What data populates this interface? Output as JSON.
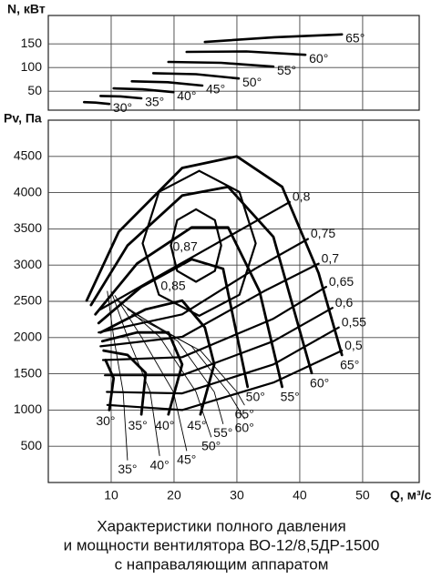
{
  "chart_data": [
    {
      "type": "line",
      "title": "N, кВт",
      "xlim": [
        0,
        59
      ],
      "xticks": [
        10,
        20,
        30,
        40,
        50
      ],
      "ylim": [
        10,
        210
      ],
      "yticks": [
        50,
        100,
        150
      ],
      "grid": true,
      "color": "#000000",
      "series": [
        {
          "name": "30°",
          "x": [
            5.7,
            7.5,
            9.7
          ],
          "values": [
            27,
            26,
            23
          ]
        },
        {
          "name": "35°",
          "x": [
            8.3,
            11.5,
            14.8
          ],
          "values": [
            40,
            39,
            35
          ]
        },
        {
          "name": "40°",
          "x": [
            10.4,
            15,
            19.9
          ],
          "values": [
            56,
            54,
            48
          ]
        },
        {
          "name": "45°",
          "x": [
            13.3,
            19,
            24.5
          ],
          "values": [
            71,
            69,
            62
          ]
        },
        {
          "name": "50°",
          "x": [
            16.7,
            23.5,
            30.3
          ],
          "values": [
            88,
            86,
            77
          ]
        },
        {
          "name": "55°",
          "x": [
            19.1,
            27.5,
            35.8
          ],
          "values": [
            112,
            110,
            102
          ]
        },
        {
          "name": "60°",
          "x": [
            22,
            31.5,
            40.9
          ],
          "values": [
            133,
            134,
            127
          ]
        },
        {
          "name": "65°",
          "x": [
            24.9,
            36,
            46.7
          ],
          "values": [
            154,
            164,
            170
          ]
        }
      ]
    },
    {
      "type": "line",
      "title": "Pv, Па",
      "x_label": "Q, м³/с",
      "xlim": [
        0,
        59
      ],
      "xticks": [
        10,
        20,
        30,
        40,
        50
      ],
      "ylim": [
        0,
        5000
      ],
      "yticks": [
        500,
        1000,
        1500,
        2000,
        2500,
        3000,
        3500,
        4000,
        4500
      ],
      "grid": true,
      "color": "#000000",
      "series": [
        {
          "name": "30°",
          "x": [
            9.1,
            10.4,
            9.7
          ],
          "values": [
            1690,
            1440,
            1000
          ]
        },
        {
          "name": "35°",
          "x": [
            8.8,
            12.6,
            15.5,
            14.8
          ],
          "values": [
            1820,
            1760,
            1510,
            940
          ]
        },
        {
          "name": "40°",
          "x": [
            8.6,
            14.1,
            19.1,
            21.3,
            19.1
          ],
          "values": [
            1950,
            2070,
            2070,
            1630,
            940
          ]
        },
        {
          "name": "45°",
          "x": [
            8.3,
            15.5,
            21.3,
            24.9,
            26.4,
            24.2
          ],
          "values": [
            2070,
            2390,
            2510,
            2140,
            1630,
            940
          ]
        },
        {
          "name": "50°",
          "x": [
            8.0,
            14.8,
            22.8,
            27.8,
            31.7
          ],
          "values": [
            2200,
            2700,
            3080,
            2950,
            1320
          ]
        },
        {
          "name": "55°",
          "x": [
            7.5,
            14.1,
            22.8,
            28.6,
            33.6,
            37.2
          ],
          "values": [
            2320,
            3020,
            3520,
            3520,
            2640,
            1320
          ]
        },
        {
          "name": "60°",
          "x": [
            6.8,
            12.6,
            21.3,
            28.6,
            35.8,
            41.9
          ],
          "values": [
            2450,
            3270,
            3960,
            4080,
            3390,
            1510
          ]
        },
        {
          "name": "65°",
          "x": [
            6.1,
            11.2,
            21.3,
            30,
            37.2,
            43,
            46.7
          ],
          "values": [
            2510,
            3460,
            4340,
            4500,
            4080,
            2890,
            1760
          ]
        }
      ],
      "efficiency": [
        {
          "name": "0,5",
          "x": [
            9.4,
            21.3,
            35.8,
            46.7
          ],
          "values": [
            1070,
            1000,
            1380,
            1820
          ]
        },
        {
          "name": "0,55",
          "x": [
            9.3,
            21.3,
            35.8,
            46.2
          ],
          "values": [
            1250,
            1230,
            1630,
            2140
          ]
        },
        {
          "name": "0,6",
          "x": [
            9.0,
            21.3,
            35.8,
            45.2
          ],
          "values": [
            1480,
            1480,
            1950,
            2410
          ]
        },
        {
          "name": "0,65",
          "x": [
            8.7,
            21.3,
            35.8,
            44.2
          ],
          "values": [
            1690,
            1730,
            2260,
            2700
          ]
        },
        {
          "name": "0,7",
          "x": [
            8.3,
            21.3,
            34.3,
            43
          ],
          "values": [
            1880,
            2010,
            2640,
            3020
          ]
        },
        {
          "name": "0,75",
          "x": [
            8.0,
            21.3,
            32.9,
            41.3
          ],
          "values": [
            2070,
            2320,
            2950,
            3360
          ]
        },
        {
          "name": "0,8",
          "x": [
            8.3,
            18.4,
            28.6,
            38.4
          ],
          "values": [
            2390,
            2890,
            3390,
            3870
          ]
        }
      ],
      "efficiency_contours": [
        {
          "name": "0,85",
          "x": [
            24,
            30.4,
            33,
            30.4,
            24,
            17.6,
            15,
            17.6,
            24
          ],
          "values": [
            4300,
            4010,
            3300,
            2590,
            2300,
            2590,
            3300,
            4010,
            4300
          ]
        },
        {
          "name": "0,87",
          "x": [
            23.5,
            26.5,
            27.5,
            26.5,
            23.5,
            20.5,
            19.5,
            20.5,
            23.5
          ],
          "values": [
            3770,
            3620,
            3270,
            2920,
            2770,
            2920,
            3270,
            3620,
            3770
          ]
        }
      ],
      "thin_series": [
        {
          "name": "35°",
          "x": [
            9.4,
            10.4,
            11.9,
            12.6
          ],
          "values": [
            2640,
            2010,
            1250,
            310
          ]
        },
        {
          "name": "40°",
          "x": [
            10,
            12.6,
            16.2,
            17.7
          ],
          "values": [
            2640,
            2010,
            1250,
            370
          ]
        },
        {
          "name": "45°",
          "x": [
            10.6,
            14.8,
            19.9,
            22
          ],
          "values": [
            2580,
            2010,
            1250,
            440
          ]
        },
        {
          "name": "50°",
          "x": [
            11.2,
            17.7,
            23.5,
            25.9
          ],
          "values": [
            2510,
            2010,
            1250,
            630
          ]
        },
        {
          "name": "55°",
          "x": [
            11.9,
            20.6,
            26.4,
            27.8
          ],
          "values": [
            2450,
            1950,
            1250,
            810
          ]
        },
        {
          "name": "60°",
          "x": [
            12.6,
            22.8,
            28.6,
            31.2
          ],
          "values": [
            2390,
            1880,
            1250,
            880
          ]
        },
        {
          "name": "65°",
          "x": [
            13.3,
            24.2,
            30,
            31.2
          ],
          "values": [
            2320,
            1820,
            1250,
            1070
          ]
        }
      ]
    }
  ],
  "caption": [
    "Характеристики полного давления",
    "и мощности вентилятора ВО-12/8,5ДР-1500",
    "с направаляющим аппаратом"
  ]
}
